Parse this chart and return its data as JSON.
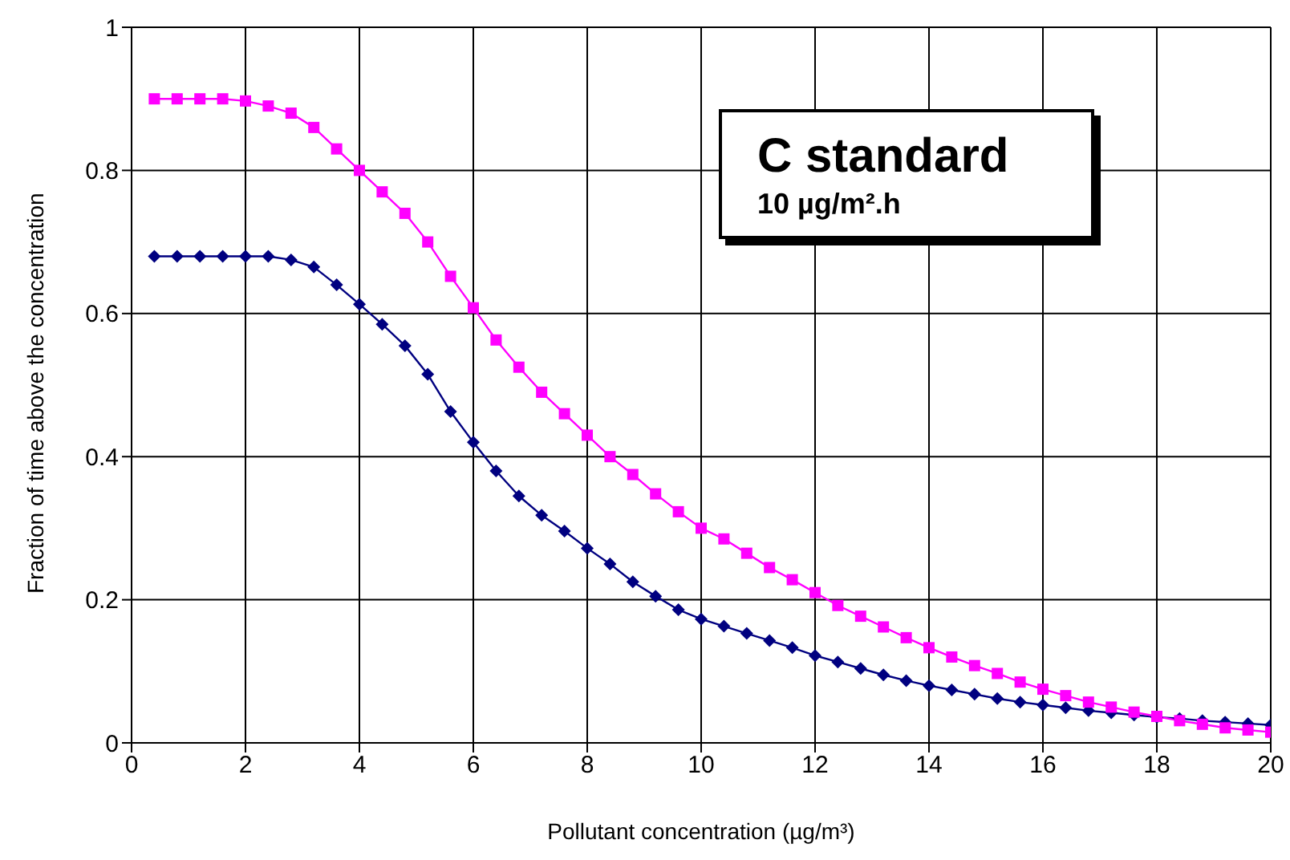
{
  "chart_data": {
    "type": "line",
    "xlabel": "Pollutant concentration (µg/m³)",
    "ylabel": "Fraction of time above the concentration",
    "annotations": [
      "C standard",
      "10 µg/m².h"
    ],
    "x": [
      0.4,
      0.8,
      1.2,
      1.6,
      2.0,
      2.4,
      2.8,
      3.2,
      3.6,
      4.0,
      4.4,
      4.8,
      5.2,
      5.6,
      6.0,
      6.4,
      6.8,
      7.2,
      7.6,
      8.0,
      8.4,
      8.8,
      9.2,
      9.6,
      10.0,
      10.4,
      10.8,
      11.2,
      11.6,
      12.0,
      12.4,
      12.8,
      13.2,
      13.6,
      14.0,
      14.4,
      14.8,
      15.2,
      15.6,
      16.0,
      16.4,
      16.8,
      17.2,
      17.6,
      18.0,
      18.4,
      18.8,
      19.2,
      19.6,
      20.0
    ],
    "series": [
      {
        "color": "#ff00ff",
        "marker": "square",
        "values": [
          0.9,
          0.9,
          0.9,
          0.9,
          0.897,
          0.89,
          0.88,
          0.86,
          0.83,
          0.8,
          0.77,
          0.74,
          0.7,
          0.652,
          0.608,
          0.563,
          0.525,
          0.49,
          0.46,
          0.43,
          0.4,
          0.375,
          0.348,
          0.323,
          0.3,
          0.285,
          0.265,
          0.245,
          0.228,
          0.21,
          0.192,
          0.177,
          0.162,
          0.147,
          0.133,
          0.12,
          0.108,
          0.097,
          0.085,
          0.075,
          0.066,
          0.057,
          0.05,
          0.043,
          0.037,
          0.031,
          0.026,
          0.021,
          0.018,
          0.015
        ]
      },
      {
        "color": "#000080",
        "marker": "diamond",
        "values": [
          0.68,
          0.68,
          0.68,
          0.68,
          0.68,
          0.68,
          0.675,
          0.665,
          0.64,
          0.613,
          0.585,
          0.555,
          0.515,
          0.463,
          0.42,
          0.38,
          0.345,
          0.318,
          0.296,
          0.272,
          0.25,
          0.225,
          0.205,
          0.186,
          0.173,
          0.163,
          0.153,
          0.143,
          0.133,
          0.122,
          0.113,
          0.104,
          0.095,
          0.087,
          0.08,
          0.074,
          0.068,
          0.062,
          0.057,
          0.053,
          0.049,
          0.045,
          0.042,
          0.039,
          0.036,
          0.034,
          0.031,
          0.029,
          0.027,
          0.025
        ]
      }
    ],
    "xlim": [
      0,
      20
    ],
    "xticks": [
      0,
      2,
      4,
      6,
      8,
      10,
      12,
      14,
      16,
      18,
      20
    ],
    "ylim": [
      0,
      1
    ],
    "yticks": [
      0,
      0.2,
      0.4,
      0.6,
      0.8,
      1
    ],
    "grid": true,
    "line_style": "solid"
  }
}
